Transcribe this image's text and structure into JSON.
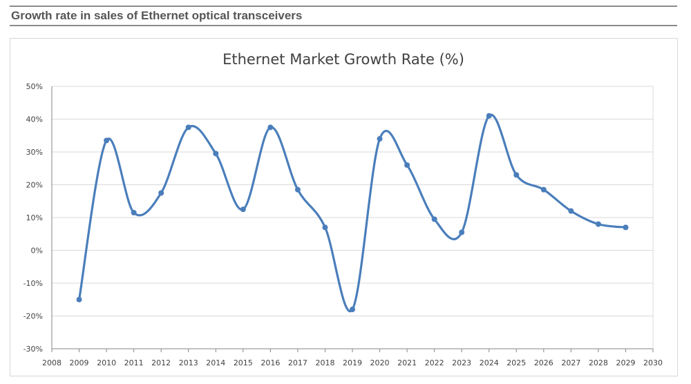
{
  "header": {
    "title": "Growth rate in sales of Ethernet optical transceivers"
  },
  "colors": {
    "series": "#4a7ebb",
    "grid": "#d9d9d9",
    "axis": "#868686",
    "header_rule": "#8a8a8a"
  },
  "chart_data": {
    "type": "line",
    "title": "Ethernet Market Growth Rate (%)",
    "xlabel": "",
    "ylabel": "",
    "smooth": true,
    "markers": true,
    "grid": true,
    "legend": "none",
    "xlim": [
      2008,
      2030
    ],
    "ylim": [
      -30,
      50
    ],
    "x_ticks": [
      "2008",
      "2009",
      "2010",
      "2011",
      "2012",
      "2013",
      "2014",
      "2015",
      "2016",
      "2017",
      "2018",
      "2019",
      "2020",
      "2021",
      "2022",
      "2023",
      "2024",
      "2025",
      "2026",
      "2027",
      "2028",
      "2029",
      "2030"
    ],
    "y_ticks": [
      "50%",
      "40%",
      "30%",
      "20%",
      "10%",
      "0%",
      "-10%",
      "-20%",
      "-30%"
    ],
    "x": [
      2009,
      2010,
      2011,
      2012,
      2013,
      2014,
      2015,
      2016,
      2017,
      2018,
      2019,
      2020,
      2021,
      2022,
      2023,
      2024,
      2025,
      2026,
      2027,
      2028,
      2029
    ],
    "values": [
      -15,
      33.5,
      11.5,
      17.5,
      37.5,
      29.5,
      12.5,
      37.5,
      18.5,
      7,
      -18,
      34,
      26,
      9.5,
      5.5,
      41,
      23,
      18.5,
      12,
      8,
      7
    ]
  }
}
